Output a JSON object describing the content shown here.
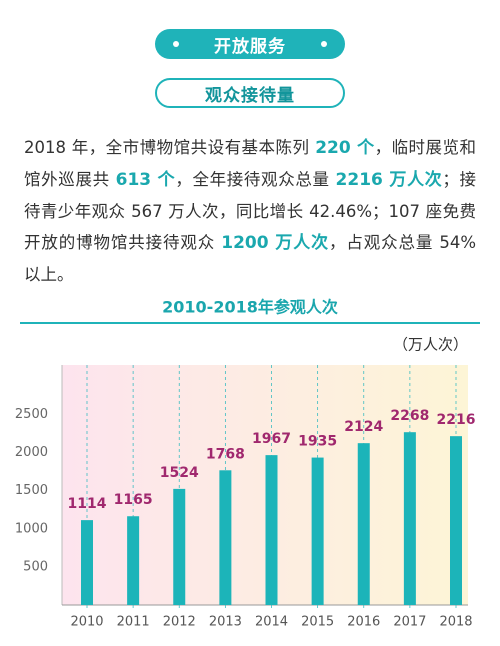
{
  "header": {
    "section": "开放服务",
    "subsection": "观众接待量"
  },
  "paragraph": [
    {
      "text": "2018 年，全市博物馆共设有基本陈列 "
    },
    {
      "text": "220 个",
      "highlight": true
    },
    {
      "text": "，临时展览和馆外巡展共 "
    },
    {
      "text": "613 个",
      "highlight": true
    },
    {
      "text": "，全年接待观众总量 "
    },
    {
      "text": "2216 万人次",
      "highlight": true
    },
    {
      "text": "；接待青少年观众 567 万人次，同比增长 42.46%；107 座免费开放的博物馆共接待观众 "
    },
    {
      "text": "1200 万人次",
      "highlight": true
    },
    {
      "text": "，占观众总量 54% 以上。"
    }
  ],
  "chart_data": {
    "type": "bar",
    "title": "2010-2018年参观人次",
    "unit": "（万人次）",
    "categories": [
      "2010",
      "2011",
      "2012",
      "2013",
      "2014",
      "2015",
      "2016",
      "2017",
      "2018"
    ],
    "values": [
      1114,
      1165,
      1524,
      1768,
      1967,
      1935,
      2124,
      2268,
      2216
    ],
    "color": "#1cb4b9",
    "label_color": "#a0286e",
    "ylim": [
      0,
      3150
    ],
    "yticks": [
      500,
      1000,
      1500,
      2000,
      2500
    ],
    "grid": false
  }
}
